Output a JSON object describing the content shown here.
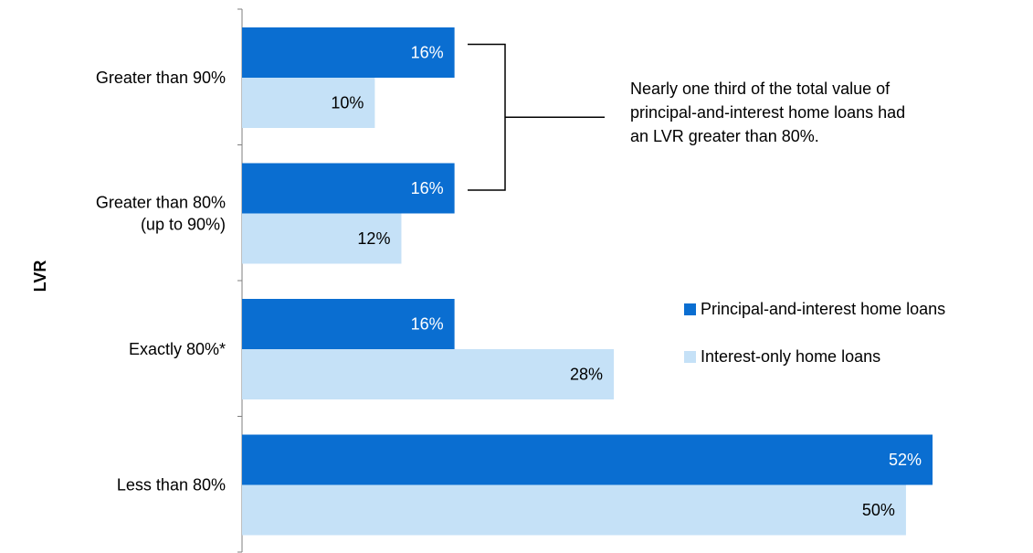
{
  "chart_data": {
    "type": "bar",
    "orientation": "horizontal",
    "ylabel": "LVR",
    "xlim": [
      0,
      55
    ],
    "grid": false,
    "legend_position": "right",
    "categories": [
      [
        "Greater than 90%"
      ],
      [
        "Greater than 80%",
        "(up to 90%)"
      ],
      [
        "Exactly 80%*"
      ],
      [
        "Less than 80%"
      ]
    ],
    "series": [
      {
        "name": "Principal-and-interest home loans",
        "color": "#0A6ED1",
        "label_color": "#ffffff",
        "values": [
          16,
          16,
          16,
          52
        ],
        "labels": [
          "16%",
          "16%",
          "16%",
          "52%"
        ]
      },
      {
        "name": "Interest-only home loans",
        "color": "#C5E1F7",
        "label_color": "#000000",
        "values": [
          10,
          12,
          28,
          50
        ],
        "labels": [
          "10%",
          "12%",
          "28%",
          "50%"
        ]
      }
    ],
    "annotation": {
      "lines": [
        "Nearly one third of the total value of",
        "principal-and-interest home loans had",
        "an LVR greater than 80%."
      ],
      "spans_categories": [
        0,
        1
      ]
    }
  }
}
